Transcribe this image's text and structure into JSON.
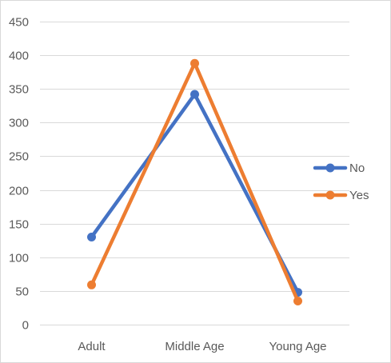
{
  "chart_data": {
    "type": "line",
    "title": "",
    "xlabel": "",
    "ylabel": "",
    "categories": [
      "Adult",
      "Middle Age",
      "Young Age"
    ],
    "series": [
      {
        "name": "No",
        "values": [
          130,
          342,
          48
        ],
        "color": "#4472c4"
      },
      {
        "name": "Yes",
        "values": [
          59,
          388,
          35
        ],
        "color": "#ed7d31"
      }
    ],
    "y_ticks": [
      "0",
      "50",
      "100",
      "150",
      "200",
      "250",
      "300",
      "350",
      "400",
      "450"
    ],
    "ylim": [
      0,
      450
    ],
    "grid": true,
    "legend_position": "right"
  }
}
